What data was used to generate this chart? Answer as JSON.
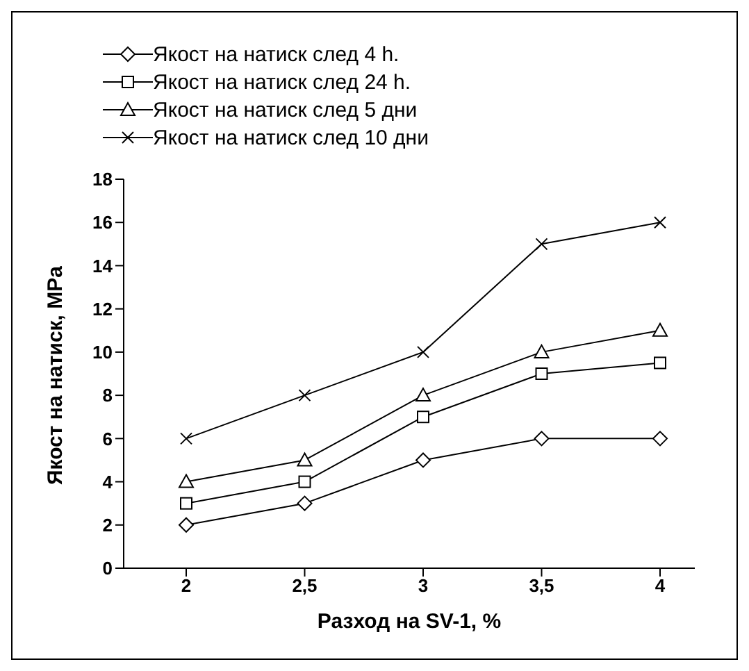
{
  "chart_data": {
    "type": "line",
    "xlabel": "Разход на SV-1, %",
    "ylabel": "Якост на натиск, MPa",
    "categories": [
      "2",
      "2,5",
      "3",
      "3,5",
      "4"
    ],
    "series": [
      {
        "name": "Якост на натиск след 4 h.",
        "color": "#000000",
        "marker": "diamond",
        "values": [
          2,
          3,
          5,
          6,
          6
        ]
      },
      {
        "name": "Якост на натиск след 24 h.",
        "color": "#000000",
        "marker": "square",
        "values": [
          3,
          4,
          7,
          9,
          9.5
        ]
      },
      {
        "name": "Якост на натиск след 5 дни",
        "color": "#000000",
        "marker": "triangle",
        "values": [
          4,
          5,
          8,
          10,
          11
        ]
      },
      {
        "name": "Якост на натиск след 10 дни",
        "color": "#000000",
        "marker": "cross",
        "values": [
          6,
          8,
          10,
          15,
          16
        ]
      }
    ],
    "ylim": [
      0,
      18
    ],
    "yticks": [
      0,
      2,
      4,
      6,
      8,
      10,
      12,
      14,
      16,
      18
    ],
    "grid": false,
    "legend": "top",
    "line_style": "solid"
  }
}
